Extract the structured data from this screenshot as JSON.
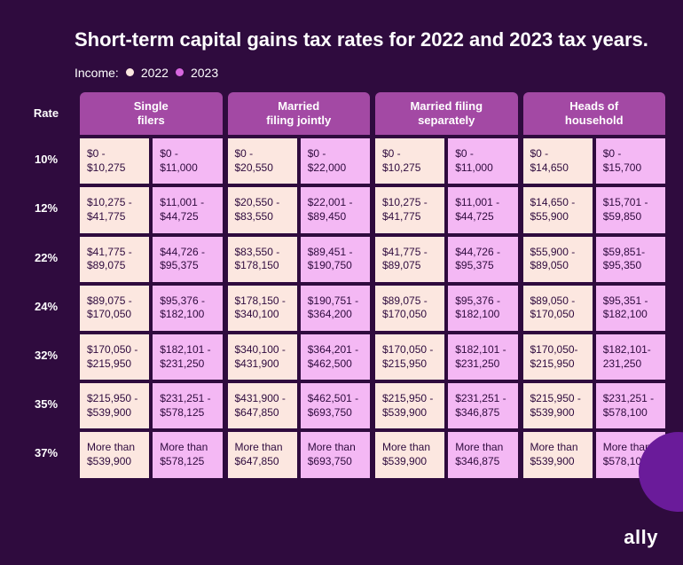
{
  "colors": {
    "background": "#2f0b3e",
    "header_bg": "#a349a4",
    "text_white": "#ffffff",
    "cell_2022": "#fce7e0",
    "cell_2023": "#f4b8f4",
    "dot_2022": "#fce7e0",
    "dot_2023": "#d867e0",
    "cell_text": "#2f0b3e",
    "blob": "#6a1b9a"
  },
  "title": "Short-term capital gains tax\nrates for 2022 and 2023 tax years.",
  "legend": {
    "label": "Income:",
    "year_2022": "2022",
    "year_2023": "2023"
  },
  "rate_header": "Rate",
  "columns": [
    "Single\nfilers",
    "Married\nfiling jointly",
    "Married filing\nseparately",
    "Heads of\nhousehold"
  ],
  "rates": [
    "10%",
    "12%",
    "22%",
    "24%",
    "32%",
    "35%",
    "37%"
  ],
  "cells": {
    "single": {
      "2022": [
        "$0 -\n$10,275",
        "$10,275 -\n$41,775",
        "$41,775 -\n$89,075",
        "$89,075 -\n$170,050",
        "$170,050 -\n$215,950",
        "$215,950 -\n$539,900",
        "More than\n$539,900"
      ],
      "2023": [
        "$0 -\n$11,000",
        "$11,001 -\n$44,725",
        "$44,726 -\n$95,375",
        "$95,376 -\n$182,100",
        "$182,101 -\n$231,250",
        "$231,251 -\n$578,125",
        "More than\n$578,125"
      ]
    },
    "married_joint": {
      "2022": [
        "$0 -\n$20,550",
        "$20,550 -\n$83,550",
        "$83,550 -\n$178,150",
        "$178,150 -\n$340,100",
        "$340,100 -\n$431,900",
        "$431,900 -\n$647,850",
        "More than\n$647,850"
      ],
      "2023": [
        "$0 -\n$22,000",
        "$22,001 -\n$89,450",
        "$89,451 -\n$190,750",
        "$190,751 -\n$364,200",
        "$364,201 -\n$462,500",
        "$462,501 -\n$693,750",
        "More than\n$693,750"
      ]
    },
    "married_sep": {
      "2022": [
        "$0 -\n$10,275",
        "$10,275 -\n$41,775",
        "$41,775 -\n$89,075",
        "$89,075 -\n$170,050",
        "$170,050 -\n$215,950",
        "$215,950 -\n$539,900",
        "More than\n$539,900"
      ],
      "2023": [
        "$0 -\n$11,000",
        "$11,001 -\n$44,725",
        "$44,726 -\n$95,375",
        "$95,376 -\n$182,100",
        "$182,101 -\n$231,250",
        "$231,251 -\n$346,875",
        "More than\n$346,875"
      ]
    },
    "heads": {
      "2022": [
        "$0 -\n$14,650",
        "$14,650 -\n$55,900",
        "$55,900 -\n$89,050",
        "$89,050 -\n$170,050",
        "$170,050-\n$215,950",
        "$215,950 -\n$539,900",
        "More than\n$539,900"
      ],
      "2023": [
        "$0 -\n$15,700",
        "$15,701 -\n$59,850",
        "$59,851-\n$95,350",
        "$95,351 -\n$182,100",
        "$182,101-\n231,250",
        "$231,251 -\n$578,100",
        "More than\n$578,100"
      ]
    }
  },
  "logo_text": "ally"
}
